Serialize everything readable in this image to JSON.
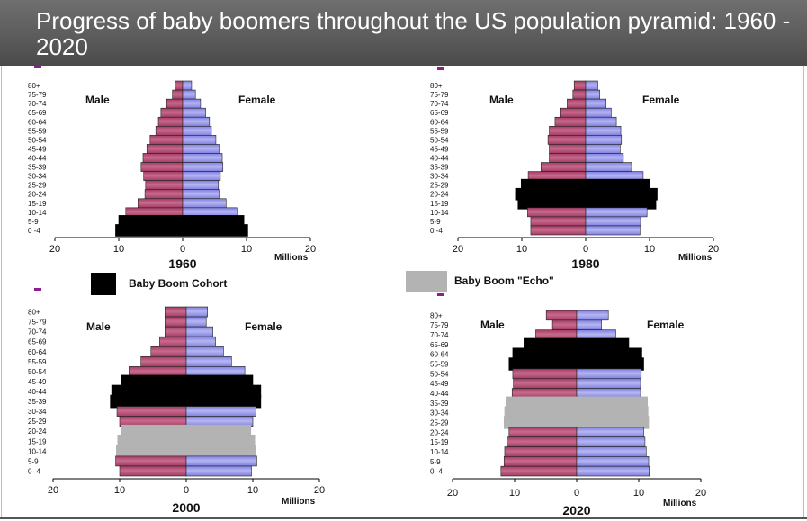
{
  "title": "Progress of baby boomers throughout the US population pyramid: 1960 - 2020",
  "colors": {
    "male": "#a23b63",
    "male_light": "#c86a8d",
    "female": "#7f7fe0",
    "female_light": "#b6b6f2",
    "cohort": "#000000",
    "echo": "#b3b3b3"
  },
  "legend": [
    {
      "id": "cohort",
      "label": "Baby Boom Cohort",
      "color": "#000000"
    },
    {
      "id": "echo",
      "label": "Baby Boom \"Echo\"",
      "color": "#b3b3b3"
    }
  ],
  "chart_data": [
    {
      "type": "bar",
      "title": "1960",
      "xlabel": "Millions",
      "male_label": "Male",
      "female_label": "Female",
      "xlim": [
        -20,
        20
      ],
      "x_ticks": [
        "20",
        "10",
        "0",
        "10",
        "20"
      ],
      "categories": [
        "80+",
        "75-79",
        "70-74",
        "65-69",
        "60-64",
        "55-59",
        "50-54",
        "45-49",
        "40-44",
        "35-39",
        "30-34",
        "25-29",
        "20-24",
        "15-19",
        "10-14",
        "5-9",
        "0 -4"
      ],
      "series": [
        {
          "name": "Male",
          "values": [
            1.2,
            1.6,
            2.5,
            3.4,
            3.8,
            4.2,
            5.1,
            5.6,
            6.2,
            6.5,
            6.1,
            5.8,
            5.9,
            7.0,
            8.9,
            10.0,
            10.5
          ]
        },
        {
          "name": "Female",
          "values": [
            1.4,
            2.0,
            2.8,
            3.6,
            4.2,
            4.5,
            5.2,
            5.7,
            6.2,
            6.3,
            5.9,
            5.6,
            5.7,
            6.8,
            8.5,
            9.6,
            10.2
          ]
        }
      ],
      "highlight": {
        "cohort": [
          "0 -4",
          "5-9"
        ],
        "echo": []
      }
    },
    {
      "type": "bar",
      "title": "1980",
      "xlabel": "Millions",
      "male_label": "Male",
      "female_label": "Female",
      "xlim": [
        -20,
        20
      ],
      "x_ticks": [
        "20",
        "10",
        "0",
        "10",
        "20"
      ],
      "categories": [
        "80+",
        "75-79",
        "70-74",
        "65-69",
        "60-64",
        "55-59",
        "50-54",
        "45-49",
        "40-44",
        "35-39",
        "30-34",
        "25-29",
        "20-24",
        "15-19",
        "10-14",
        "5-9",
        "0 -4"
      ],
      "series": [
        {
          "name": "Male",
          "values": [
            1.8,
            2.0,
            2.9,
            3.9,
            4.8,
            5.7,
            5.9,
            5.7,
            5.7,
            7.0,
            9.0,
            10.1,
            11.0,
            10.6,
            9.1,
            8.6,
            8.6
          ]
        },
        {
          "name": "Female",
          "values": [
            1.9,
            2.2,
            3.2,
            4.0,
            4.8,
            5.5,
            5.6,
            5.4,
            5.9,
            7.2,
            9.0,
            10.1,
            11.2,
            11.0,
            9.6,
            8.6,
            8.5
          ]
        }
      ],
      "highlight": {
        "cohort": [
          "25-29",
          "20-24",
          "15-19"
        ],
        "echo": []
      }
    },
    {
      "type": "bar",
      "title": "2000",
      "xlabel": "Millions",
      "male_label": "Male",
      "female_label": "Female",
      "xlim": [
        -20,
        20
      ],
      "x_ticks": [
        "20",
        "10",
        "0",
        "10",
        "20"
      ],
      "categories": [
        "80+",
        "75-79",
        "70-74",
        "65-69",
        "60-64",
        "55-59",
        "50-54",
        "45-49",
        "40-44",
        "35-39",
        "30-34",
        "25-29",
        "20-24",
        "15-19",
        "10-14",
        "5-9",
        "0 -4"
      ],
      "series": [
        {
          "name": "Male",
          "values": [
            3.2,
            3.2,
            3.2,
            4.0,
            5.3,
            6.8,
            8.6,
            9.8,
            11.2,
            11.4,
            10.4,
            10.0,
            9.8,
            10.3,
            10.5,
            10.6,
            10.0
          ]
        },
        {
          "name": "Female",
          "values": [
            3.2,
            3.0,
            4.0,
            4.4,
            5.6,
            6.8,
            8.8,
            10.0,
            11.2,
            11.2,
            10.5,
            10.0,
            9.7,
            10.3,
            10.4,
            10.6,
            9.8
          ]
        }
      ],
      "highlight": {
        "cohort": [
          "45-49",
          "40-44",
          "35-39"
        ],
        "echo": [
          "20-24",
          "15-19",
          "10-14"
        ]
      }
    },
    {
      "type": "bar",
      "title": "2020",
      "xlabel": "Millions",
      "male_label": "Male",
      "female_label": "Female",
      "xlim": [
        -20,
        20
      ],
      "x_ticks": [
        "20",
        "10",
        "0",
        "10",
        "20"
      ],
      "categories": [
        "80+",
        "75-79",
        "70-74",
        "65-69",
        "60-64",
        "55-59",
        "50-54",
        "45-49",
        "40-44",
        "35-39",
        "30-34",
        "25-29",
        "20-24",
        "15-19",
        "10-14",
        "5-9",
        "0 -4"
      ],
      "series": [
        {
          "name": "Male",
          "values": [
            4.9,
            3.9,
            6.6,
            8.5,
            10.3,
            10.9,
            10.3,
            10.2,
            10.4,
            11.4,
            11.6,
            11.7,
            10.9,
            11.2,
            11.6,
            11.7,
            12.2
          ]
        },
        {
          "name": "Female",
          "values": [
            5.1,
            4.0,
            6.3,
            8.4,
            10.5,
            10.8,
            10.4,
            10.3,
            10.3,
            11.4,
            11.5,
            11.6,
            10.8,
            11.0,
            11.2,
            11.6,
            11.7
          ]
        }
      ],
      "highlight": {
        "cohort": [
          "65-69",
          "60-64",
          "55-59"
        ],
        "echo": [
          "35-39",
          "30-34",
          "25-29"
        ]
      }
    }
  ]
}
